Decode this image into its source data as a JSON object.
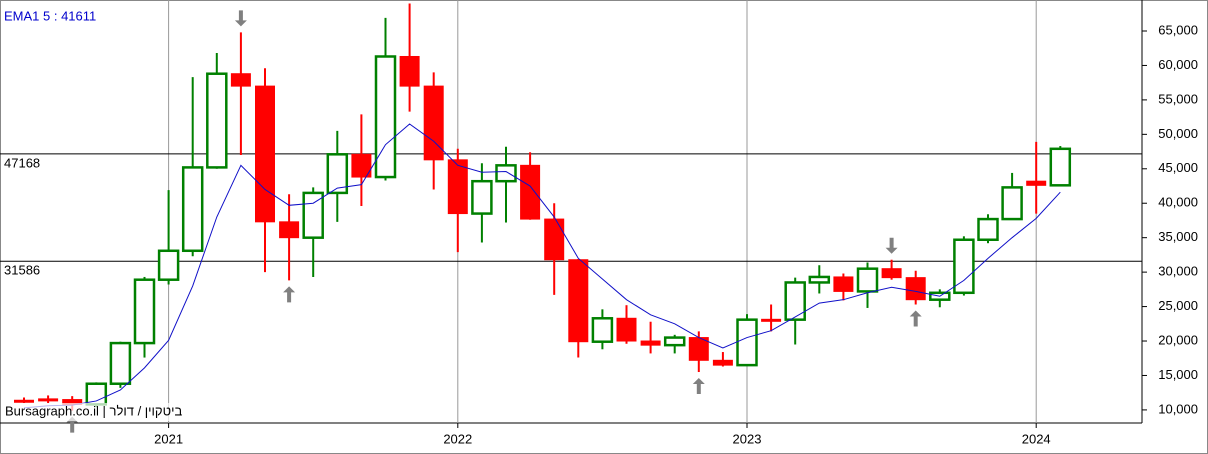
{
  "chart_data": {
    "type": "candlestick",
    "title": "EMA1 5 : 41611",
    "watermark": "Bursagraph.co.il | ביטקוין / דולר",
    "categories": [
      null,
      null,
      null,
      null,
      null,
      null,
      "2021",
      null,
      null,
      null,
      null,
      null,
      null,
      null,
      null,
      null,
      null,
      null,
      "2022",
      null,
      null,
      null,
      null,
      null,
      null,
      null,
      null,
      null,
      null,
      null,
      "2023",
      null,
      null,
      null,
      null,
      null,
      null,
      null,
      null,
      null,
      null,
      null,
      "2024",
      null
    ],
    "open": [
      11400,
      11600,
      11500,
      10800,
      13800,
      19700,
      28900,
      33100,
      45200,
      58800,
      57000,
      37300,
      35000,
      41500,
      47100,
      43800,
      61300,
      57000,
      46300,
      38500,
      43200,
      45500,
      37700,
      31800,
      19900,
      23300,
      20000,
      19400,
      20500,
      17200,
      16500,
      23150,
      23100,
      28500,
      29300,
      27200,
      30500,
      29200,
      26000,
      27000,
      34700,
      37700,
      43200,
      42600
    ],
    "high": [
      11800,
      12100,
      12000,
      14000,
      19900,
      29300,
      41900,
      58300,
      61800,
      64800,
      59600,
      41300,
      42300,
      50500,
      52900,
      66900,
      69000,
      59000,
      47900,
      45800,
      48200,
      47400,
      40000,
      31900,
      24600,
      25200,
      22800,
      20900,
      21400,
      18400,
      23900,
      25300,
      29200,
      31000,
      29800,
      31400,
      31800,
      30200,
      27500,
      35200,
      38400,
      44400,
      48900,
      48300
    ],
    "low": [
      11000,
      11000,
      9900,
      10400,
      13200,
      17600,
      28200,
      32300,
      45000,
      47000,
      30000,
      28800,
      29300,
      37300,
      39600,
      43300,
      53300,
      42000,
      32900,
      34300,
      37200,
      37600,
      26700,
      17600,
      18800,
      19600,
      18200,
      18200,
      15500,
      16300,
      16500,
      21400,
      19500,
      26900,
      25900,
      24800,
      28900,
      25300,
      24900,
      26600,
      34200,
      37700,
      38500,
      42500
    ],
    "close": [
      11300,
      11500,
      10800,
      13800,
      19700,
      28900,
      33100,
      45200,
      58800,
      57000,
      37300,
      35000,
      41500,
      47100,
      43800,
      61300,
      57000,
      46300,
      38500,
      43200,
      45500,
      37700,
      31800,
      19900,
      23300,
      20000,
      19400,
      20500,
      17200,
      16500,
      23100,
      23100,
      28500,
      29300,
      27200,
      30500,
      29200,
      26000,
      27000,
      34700,
      37700,
      42300,
      42600,
      47900
    ],
    "up_color": "#008000",
    "down_color": "#ff0000",
    "overlay": {
      "color": "#1010c8",
      "values": [
        10300,
        10600,
        10700,
        11300,
        12900,
        16100,
        20100,
        28000,
        38000,
        45500,
        42000,
        39700,
        40000,
        42200,
        42700,
        48500,
        51500,
        49000,
        45500,
        44500,
        44600,
        42500,
        38000,
        32000,
        29000,
        26000,
        23800,
        22500,
        20500,
        19000,
        20500,
        21500,
        23500,
        25500,
        26000,
        27000,
        27800,
        27200,
        26500,
        28800,
        32000,
        35000,
        37800,
        41600
      ]
    },
    "reference_lines": [
      47168,
      31586
    ],
    "ylim": [
      8100,
      69500
    ],
    "yticks": [
      {
        "value": 10000,
        "label": "10,000"
      },
      {
        "value": 15000,
        "label": "15,000"
      },
      {
        "value": 20000,
        "label": "20,000"
      },
      {
        "value": 25000,
        "label": "25,000"
      },
      {
        "value": 30000,
        "label": "30,000"
      },
      {
        "value": 35000,
        "label": "35,000"
      },
      {
        "value": 40000,
        "label": "40,000"
      },
      {
        "value": 45000,
        "label": "45,000"
      },
      {
        "value": 50000,
        "label": "50,000"
      },
      {
        "value": 55000,
        "label": "55,000"
      },
      {
        "value": 60000,
        "label": "60,000"
      },
      {
        "value": 65000,
        "label": "65,000"
      }
    ],
    "grid": true
  }
}
